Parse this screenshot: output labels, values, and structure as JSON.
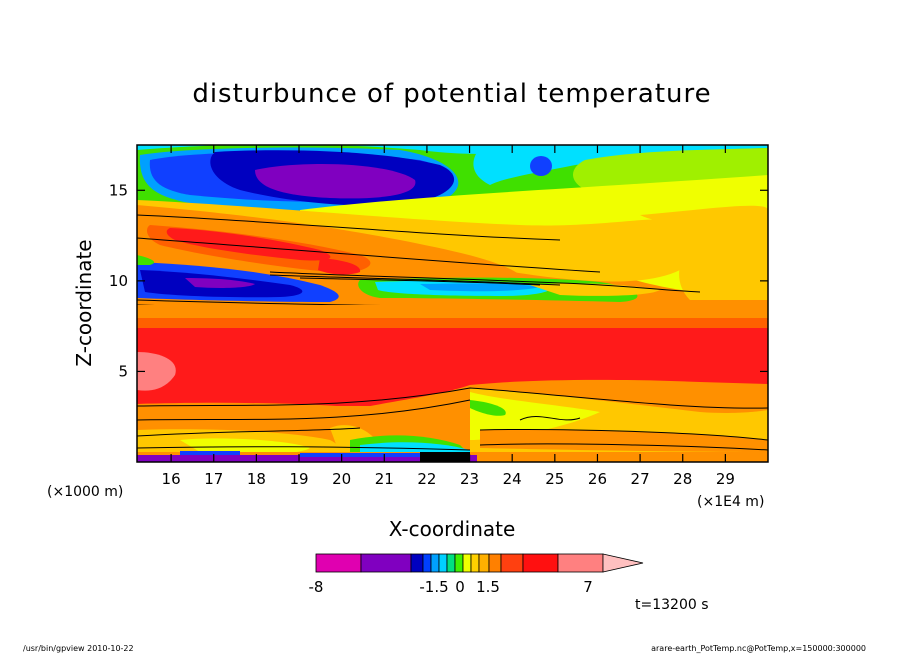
{
  "chart_data": {
    "type": "heatmap",
    "title": "disturbunce of potential temperature",
    "xlabel": "X-coordinate",
    "ylabel": "Z-coordinate",
    "x_unit_left": "(×1000 m)",
    "x_unit_right": "(×1E4 m)",
    "x_ticks": [
      "16",
      "17",
      "18",
      "19",
      "20",
      "21",
      "22",
      "23",
      "24",
      "25",
      "26",
      "27",
      "28",
      "29"
    ],
    "y_ticks": [
      "5",
      "10",
      "15"
    ],
    "xlim": [
      15.2,
      30
    ],
    "ylim": [
      0,
      17.5
    ],
    "colorbar": {
      "labels": [
        "-8",
        "-1.5",
        "0",
        "1.5",
        "7"
      ],
      "colors": [
        "#e000b0",
        "#8000c0",
        "#0000c0",
        "#0040ff",
        "#00a0ff",
        "#00d0ff",
        "#00e080",
        "#40f000",
        "#f0ff00",
        "#ffd000",
        "#ffb000",
        "#ff8000",
        "#ff4010",
        "#ff1010",
        "#ff8080",
        "#ffc0c0"
      ]
    },
    "time_label": "t=13200 s",
    "colors": {
      "magenta": "#e000b0",
      "purple": "#8000c0",
      "dark_blue": "#0000c0",
      "blue": "#1040ff",
      "light_blue": "#00a0ff",
      "cyan": "#00e0ff",
      "green": "#40e000",
      "lime": "#a0f000",
      "yellow": "#f0ff00",
      "gold": "#ffc800",
      "orange": "#ff9000",
      "dark_orange": "#ff6000",
      "red": "#ff1a1a",
      "pink": "#ff8080"
    }
  },
  "footer": {
    "left": "/usr/bin/gpview  2010-10-22",
    "right": "arare-earth_PotTemp.nc@PotTemp,x=150000:300000"
  }
}
